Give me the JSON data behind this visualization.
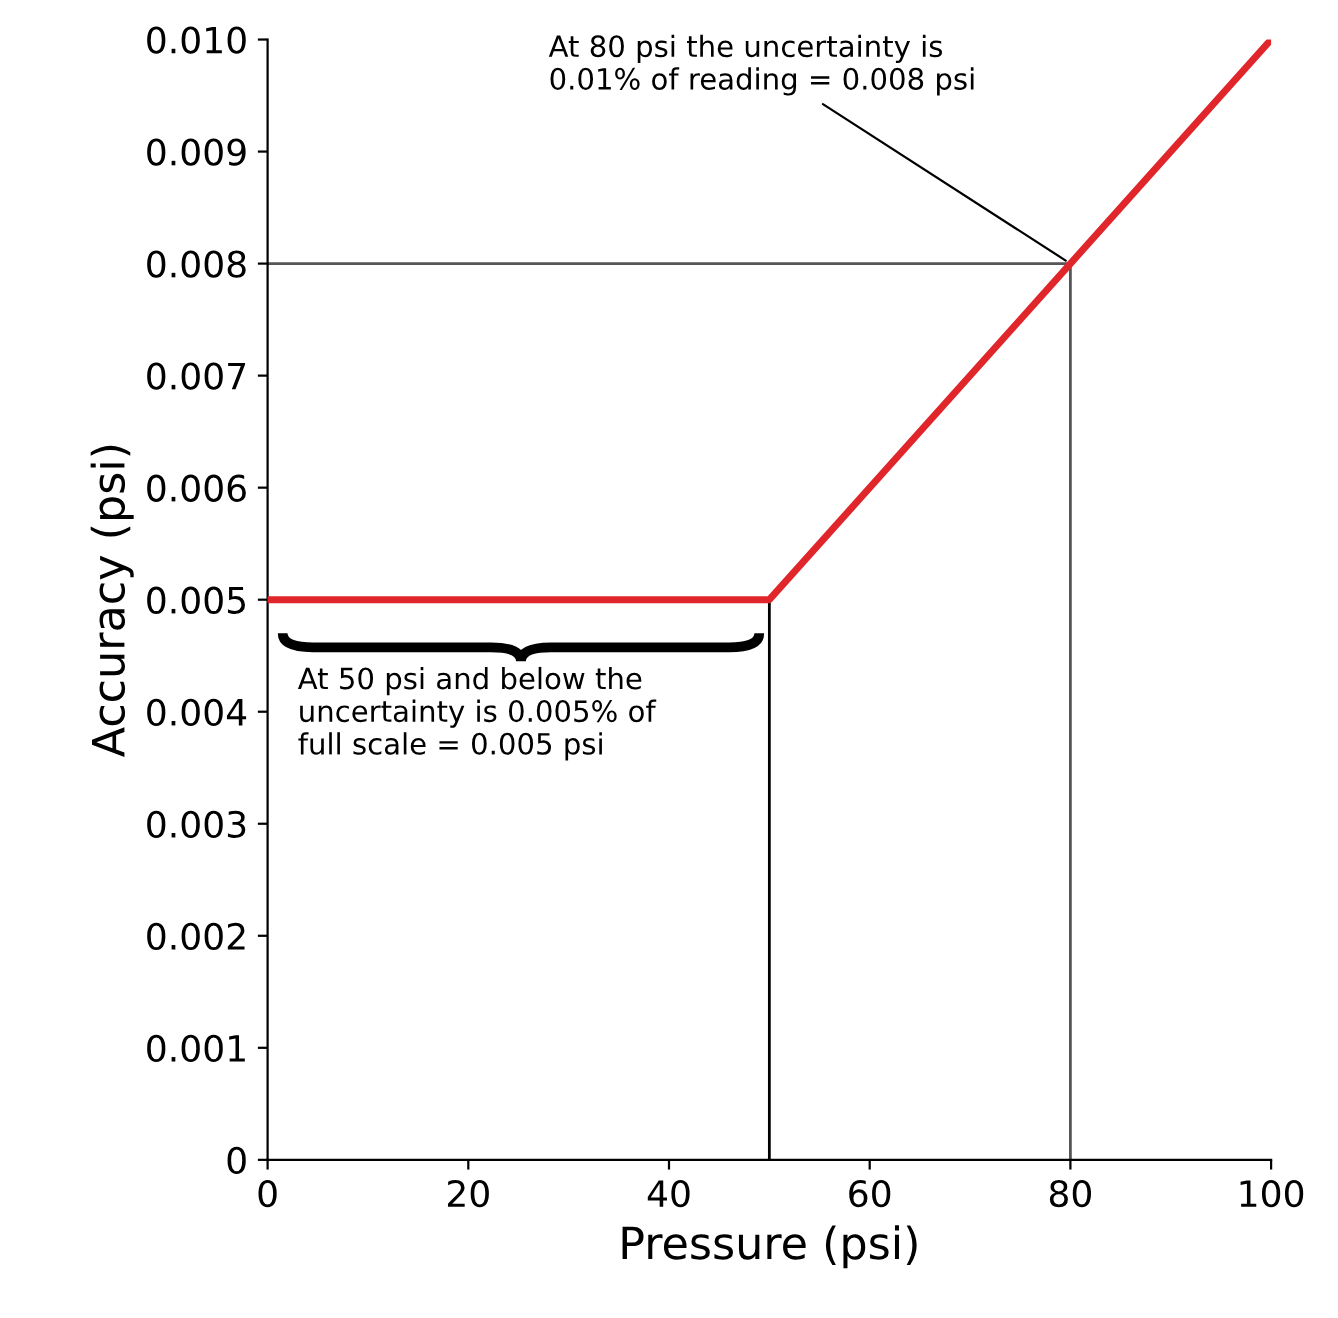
{
  "chart_data": {
    "type": "line",
    "xlabel": "Pressure (psi)",
    "ylabel": "Accuracy (psi)",
    "x": [
      0,
      50,
      80,
      100
    ],
    "series": [
      {
        "color": "#e0262b",
        "values": [
          0.005,
          0.005,
          0.008,
          0.01
        ]
      }
    ],
    "xlim": [
      0,
      100
    ],
    "xticks": [
      0,
      20,
      40,
      60,
      80,
      100
    ],
    "ylim": [
      0,
      0.01
    ],
    "yticks": [
      0,
      0.001,
      0.002,
      0.003,
      0.004,
      0.005,
      0.006,
      0.007,
      0.008,
      0.009,
      {
        "value": 0.01,
        "label": "0.010"
      }
    ],
    "ref_lines": [
      {
        "axis": "x",
        "value": 50,
        "color": "#000000"
      },
      {
        "axis": "x",
        "value": 80,
        "color": "#555555"
      },
      {
        "axis": "y",
        "value": 0.008,
        "color": "#555555"
      }
    ],
    "annotations": [
      {
        "text": "At 80 psi the uncertainty is\n0.01% of reading = 0.008 psi",
        "x": 80,
        "y": 0.008
      },
      "At 50 psi and below the\nuncertainty is 0.005% of\nfull scale = 0.005 psi"
    ],
    "legend": false,
    "grid": false
  }
}
